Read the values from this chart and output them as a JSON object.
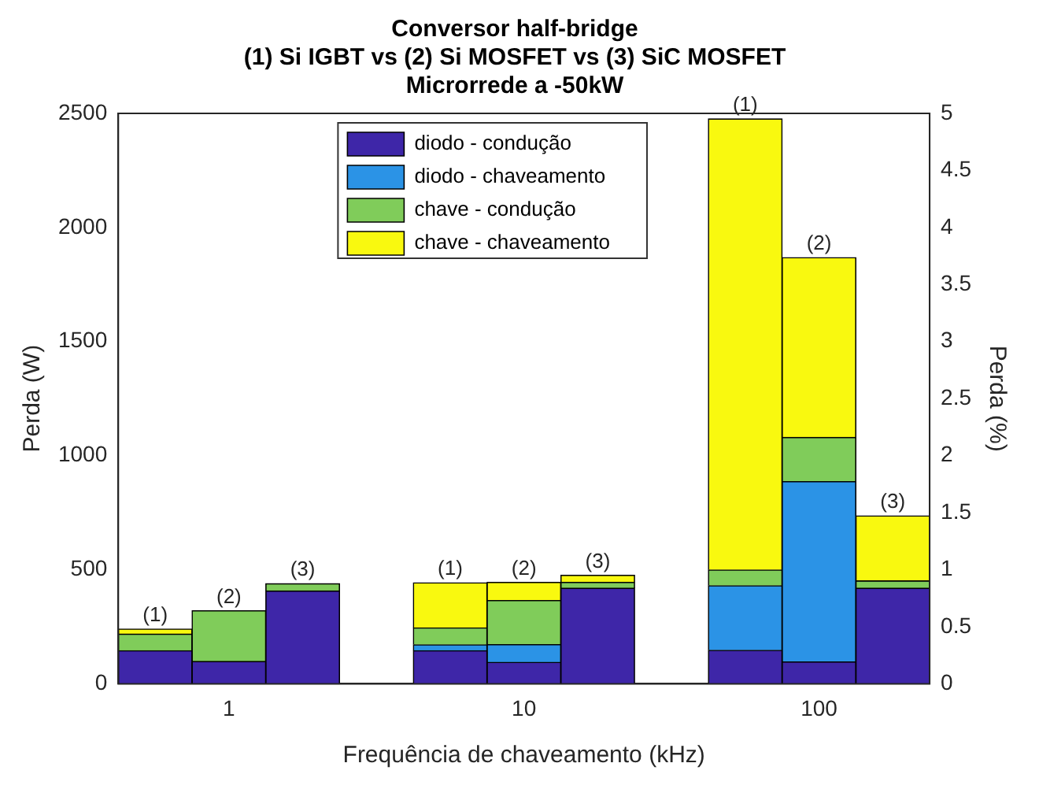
{
  "chart_data": {
    "type": "bar",
    "title": "Conversor half-bridge",
    "subtitle": "(1) Si IGBT vs (2) Si MOSFET vs (3) SiC MOSFET\nMicrorrede a -50kW",
    "xlabel": "Frequência de chaveamento (kHz)",
    "ylabel": "Perda (W)",
    "y2label": "Perda (%)",
    "categories": [
      null,
      "1",
      null,
      null,
      null,
      "10",
      null,
      null,
      null,
      "100",
      null
    ],
    "stacked": true,
    "series": [
      {
        "name": "diodo - condução",
        "color": "#3e26a8",
        "values": [
          145,
          98,
          407,
          null,
          145,
          94,
          419,
          null,
          147,
          96,
          419
        ]
      },
      {
        "name": "diodo - chaveamento",
        "color": "#2b93e6",
        "values": [
          0,
          0,
          0,
          null,
          26,
          78,
          0,
          null,
          283,
          790,
          null
        ]
      },
      {
        "name": "chave - condução",
        "color": "#80cc5a",
        "values": [
          73,
          222,
          32,
          null,
          74,
          193,
          26,
          null,
          69,
          194,
          32
        ]
      },
      {
        "name": "chave - chaveamento",
        "color": "#f9f90f",
        "values": [
          22,
          0,
          null,
          null,
          198,
          80,
          31,
          null,
          1977,
          788,
          285
        ]
      }
    ],
    "ylim": [
      0,
      2500
    ],
    "yticks": [
      0,
      500,
      1000,
      1500,
      2000,
      2500
    ],
    "y2lim": [
      0,
      5
    ],
    "y2ticks": [
      0,
      0.5,
      1,
      1.5,
      2,
      2.5,
      3,
      3.5,
      4,
      4.5,
      5
    ],
    "annotations": [
      "(1)",
      "(2)",
      "(3)",
      "(1)",
      "(2)",
      "(3)",
      "(1)",
      "(2)",
      "(3)"
    ],
    "legend": "top",
    "grid": false
  }
}
